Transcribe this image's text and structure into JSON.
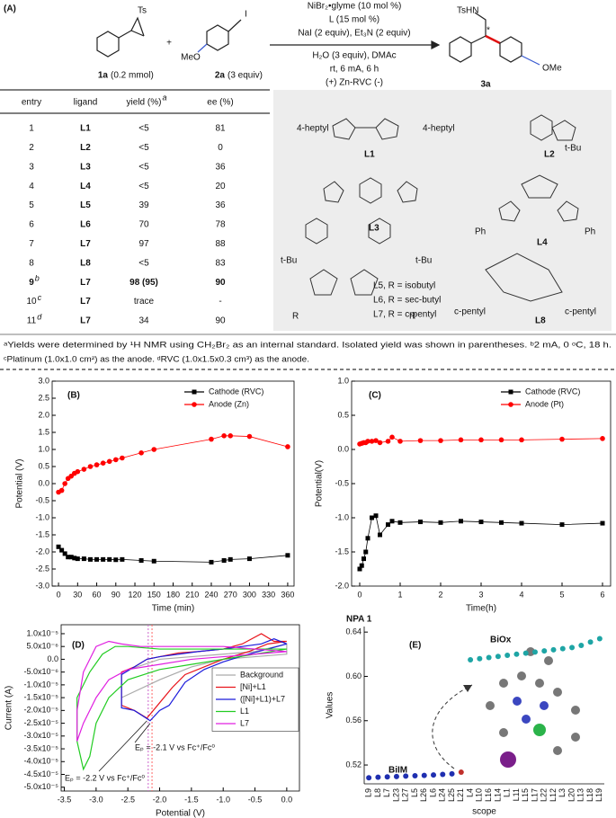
{
  "panel_a": {
    "label": "(A)",
    "scheme": {
      "ts": "Ts",
      "r1_id": "1a",
      "r1_amount": "(0.2 mmol)",
      "plus": "+",
      "meo": "MeO",
      "iodo": "I",
      "r2_id": "2a",
      "r2_amount": "(3 equiv)",
      "conditions_above": [
        "NiBr₂•glyme (10 mol %)",
        "L (15 mol %)",
        "NaI (2 equiv), Et₃N (2 equiv)"
      ],
      "conditions_below": [
        "H₂O (3 equiv), DMAc",
        "rt, 6 mA, 6 h",
        "(+) Zn-RVC (-)"
      ],
      "tshn": "TsHN",
      "star": "*",
      "ome": "OMe",
      "product_id": "3a"
    },
    "table": {
      "headers": [
        "entry",
        "ligand",
        "yield (%)",
        "ee (%)"
      ],
      "header_notes": {
        "2": "a"
      },
      "rows": [
        [
          "1",
          "L1",
          "<5",
          "81"
        ],
        [
          "2",
          "L2",
          "<5",
          "0"
        ],
        [
          "3",
          "L3",
          "<5",
          "36"
        ],
        [
          "4",
          "L4",
          "<5",
          "20"
        ],
        [
          "5",
          "L5",
          "39",
          "36"
        ],
        [
          "6",
          "L6",
          "70",
          "78"
        ],
        [
          "7",
          "L7",
          "97",
          "88"
        ],
        [
          "8",
          "L8",
          "<5",
          "83"
        ],
        [
          "9",
          "L7",
          "98 (95)",
          "90"
        ],
        [
          "10",
          "L7",
          "trace",
          "-"
        ],
        [
          "11",
          "L7",
          "34",
          "90"
        ]
      ],
      "row_notes": {
        "8": "b",
        "9": "c",
        "10": "d"
      },
      "bold_row": 8,
      "bold_columns": [
        1
      ]
    },
    "ligands": [
      "4-heptyl",
      "4-heptyl",
      "L1",
      "L2",
      "t-Bu",
      "L3",
      "L4",
      "Ph",
      "Ph",
      "t-Bu",
      "t-Bu",
      "L5,   R = isobutyl",
      "L6,   R = sec-butyl",
      "L7,   R = c-pentyl",
      "R",
      "R",
      "L8",
      "c-pentyl",
      "c-pentyl"
    ],
    "footnotes": [
      "ᵃYields were determined by ¹H NMR using CH₂Br₂ as an internal standard. Isolated yield was shown in parentheses. ᵇ2 mA, 0 ᵒC, 18 h.",
      "ᶜPlatinum (1.0x1.0 cm²) as the anode. ᵈRVC (1.0x1.5x0.3 cm³) as the anode."
    ]
  },
  "chart_data": [
    {
      "type": "line",
      "panel": "(B)",
      "xlabel": "Time (min)",
      "ylabel": "Potential (V)",
      "legend": "top-right",
      "frame": true,
      "x": [
        0,
        5,
        10,
        15,
        20,
        25,
        30,
        40,
        50,
        60,
        70,
        80,
        90,
        100,
        130,
        150,
        240,
        260,
        270,
        300,
        360
      ],
      "series": [
        {
          "name": "Cathode (RVC)",
          "color": "#000000",
          "marker": "square",
          "values": [
            -1.85,
            -1.95,
            -2.05,
            -2.15,
            -2.15,
            -2.18,
            -2.2,
            -2.2,
            -2.22,
            -2.22,
            -2.22,
            -2.22,
            -2.23,
            -2.22,
            -2.25,
            -2.27,
            -2.3,
            -2.25,
            -2.22,
            -2.2,
            -2.1
          ]
        },
        {
          "name": "Anode (Zn)",
          "color": "#ff0000",
          "marker": "circle",
          "values": [
            -0.25,
            -0.2,
            0,
            0.15,
            0.22,
            0.3,
            0.35,
            0.42,
            0.5,
            0.55,
            0.6,
            0.65,
            0.7,
            0.75,
            0.9,
            1.0,
            1.3,
            1.4,
            1.4,
            1.38,
            1.08
          ]
        }
      ],
      "xlim": [
        -10,
        370
      ],
      "xticks": [
        0,
        30,
        60,
        90,
        120,
        150,
        180,
        210,
        240,
        270,
        300,
        330,
        360
      ],
      "ylim": [
        -3,
        3
      ],
      "yticks": [
        {
          "value": -3,
          "label": "-3.0"
        },
        -2.5,
        {
          "value": -2,
          "label": "-2.0"
        },
        -1.5,
        {
          "value": -1,
          "label": "-1.0"
        },
        -0.5,
        {
          "value": 0,
          "label": "0.0"
        },
        0.5,
        {
          "value": 1,
          "label": "1.0"
        },
        1.5,
        {
          "value": 2,
          "label": "2.0"
        },
        2.5,
        {
          "value": 3,
          "label": "3.0"
        }
      ]
    },
    {
      "type": "line",
      "panel": "(C)",
      "xlabel": "Time(h)",
      "ylabel": "Potential(V)",
      "legend": "top-right",
      "frame": true,
      "x": [
        0,
        0.05,
        0.1,
        0.15,
        0.2,
        0.3,
        0.4,
        0.5,
        0.7,
        0.8,
        1,
        1.5,
        2,
        2.5,
        3,
        3.5,
        4,
        5,
        6
      ],
      "series": [
        {
          "name": "Cathode (RVC)",
          "color": "#000000",
          "marker": "square",
          "values": [
            -1.75,
            -1.7,
            -1.6,
            -1.5,
            -1.3,
            -1.0,
            -0.97,
            -1.25,
            -1.1,
            -1.05,
            -1.07,
            -1.06,
            -1.07,
            -1.05,
            -1.06,
            -1.07,
            -1.08,
            -1.1,
            -1.08
          ]
        },
        {
          "name": "Anode (Pt)",
          "color": "#ff0000",
          "marker": "circle",
          "values": [
            0.08,
            0.09,
            0.1,
            0.1,
            0.12,
            0.12,
            0.13,
            0.1,
            0.12,
            0.18,
            0.12,
            0.13,
            0.13,
            0.14,
            0.14,
            0.14,
            0.14,
            0.15,
            0.16
          ]
        }
      ],
      "xlim": [
        -0.2,
        6.2
      ],
      "xticks": [
        0,
        1,
        2,
        3,
        4,
        5,
        6
      ],
      "ylim": [
        -2,
        1
      ],
      "yticks": [
        {
          "value": -2,
          "label": "-2.0"
        },
        -1.5,
        {
          "value": -1,
          "label": "-1.0"
        },
        -0.5,
        {
          "value": 0,
          "label": "0.0"
        },
        0.5,
        {
          "value": 1,
          "label": "1.0"
        }
      ]
    },
    {
      "type": "line",
      "panel": "(D)",
      "xlabel": "Potential (V)",
      "ylabel": "Current (A)",
      "legend": "right",
      "frame": true,
      "series": [
        {
          "name": "Background",
          "color": "#aaaaaa",
          "x": [
            -2.6,
            -2,
            -1.5,
            -1,
            -0.5,
            0,
            0,
            -0.5,
            -1,
            -1.5,
            -2,
            -2.6
          ],
          "values": [
            -1.5e-05,
            -8e-06,
            -3e-06,
            0,
            1e-06,
            2e-06,
            6e-06,
            3e-06,
            2e-06,
            1e-06,
            0,
            -5e-06
          ]
        },
        {
          "name": "[Ni]+L1",
          "color": "#e8141b",
          "x": [
            0,
            -0.3,
            -0.6,
            -1,
            -1.3,
            -1.6,
            -1.8,
            -2.0,
            -2.2,
            -2.4,
            -2.6,
            -2.6,
            -2.4,
            -2.2,
            -2,
            -1.7,
            -1.4,
            -1,
            -0.7,
            -0.4,
            -0.2,
            0
          ],
          "values": [
            7e-06,
            6e-06,
            3e-06,
            0,
            -3e-06,
            -6e-06,
            -1.1e-05,
            -1.7e-05,
            -2.3e-05,
            -2e-05,
            -1.8e-05,
            -5e-06,
            -3e-06,
            0,
            1e-06,
            2.5e-06,
            3e-06,
            4e-06,
            6e-06,
            1e-05,
            7e-06,
            7e-06
          ]
        },
        {
          "name": "([Ni]+L1)+L7",
          "color": "#1a1adb",
          "x": [
            0,
            -0.3,
            -0.6,
            -1,
            -1.3,
            -1.6,
            -1.85,
            -2.0,
            -2.15,
            -2.4,
            -2.6,
            -2.6,
            -2.4,
            -2.2,
            -2,
            -1.7,
            -1.4,
            -1,
            -0.7,
            -0.4,
            -0.2,
            0
          ],
          "values": [
            6e-06,
            4e-06,
            2e-06,
            -1e-06,
            -4e-06,
            -9e-06,
            -1.8e-05,
            -2e-05,
            -2.4e-05,
            -2e-05,
            -1.9e-05,
            -6e-06,
            -3e-06,
            0,
            1e-06,
            2e-06,
            3e-06,
            4e-06,
            5e-06,
            6e-06,
            8e-06,
            6e-06
          ]
        },
        {
          "name": "L1",
          "color": "#22cc22",
          "x": [
            0,
            -0.5,
            -1,
            -1.5,
            -2,
            -2.5,
            -2.8,
            -3.0,
            -3.1,
            -3.2,
            -3.3,
            -3.3,
            -3.1,
            -2.9,
            -2.7,
            -2.5,
            -2,
            -1.5,
            -1,
            -0.5,
            0
          ],
          "values": [
            4e-06,
            2e-06,
            0,
            -2e-06,
            -4e-06,
            -8e-06,
            -1.5e-05,
            -2.5e-05,
            -3.8e-05,
            -4.3e-05,
            -3.2e-05,
            -1.5e-05,
            -5e-06,
            2e-06,
            5e-06,
            5e-06,
            4e-06,
            4e-06,
            4e-06,
            4e-06,
            4e-06
          ]
        },
        {
          "name": "L7",
          "color": "#e020e0",
          "x": [
            0,
            -0.5,
            -1,
            -1.5,
            -2,
            -2.5,
            -2.8,
            -3.0,
            -3.2,
            -3.3,
            -3.3,
            -3.2,
            -3.0,
            -2.8,
            -2.6,
            -2.3,
            -2,
            -1.5,
            -1,
            -0.5,
            0
          ],
          "values": [
            3e-06,
            2e-06,
            1e-06,
            0,
            -2e-06,
            -4e-06,
            -8e-06,
            -1.5e-05,
            -2.5e-05,
            -3.2e-05,
            -2e-05,
            -5e-06,
            5e-06,
            7e-06,
            6e-06,
            5e-06,
            5e-06,
            5e-06,
            5e-06,
            4e-06,
            3e-06
          ]
        }
      ],
      "vlines": [
        {
          "x": -2.18,
          "color": "#cc66cc"
        },
        {
          "x": -2.12,
          "color": "#ff6666"
        }
      ],
      "annotations": [
        "Eₚ = -2.1 V vs Fc⁺/Fc⁰",
        "Eₚ = -2.2 V vs Fc⁺/Fc⁰"
      ],
      "xlim": [
        -3.55,
        0.2
      ],
      "xticks": [
        -3.5,
        {
          "value": -3,
          "label": "-3.0"
        },
        -2.5,
        {
          "value": -2,
          "label": "-2.0"
        },
        -1.5,
        {
          "value": -1,
          "label": "-1.0"
        },
        -0.5,
        {
          "value": 0,
          "label": "0.0"
        }
      ],
      "ylim": [
        -5.15e-05,
        1.35e-05
      ],
      "yticks": [
        {
          "value": -5e-05,
          "label": "-5.0x10⁻⁵"
        },
        {
          "value": -4.5e-05,
          "label": "-4.5x10⁻⁵"
        },
        {
          "value": -4e-05,
          "label": "-4.0x10⁻⁵"
        },
        {
          "value": -3.5e-05,
          "label": "-3.5x10⁻⁵"
        },
        {
          "value": -3e-05,
          "label": "-3.0x10⁻⁵"
        },
        {
          "value": -2.5e-05,
          "label": "-2.5x10⁻⁵"
        },
        {
          "value": -2e-05,
          "label": "-2.0x10⁻⁵"
        },
        {
          "value": -1.5e-05,
          "label": "-1.5x10⁻⁵"
        },
        {
          "value": -1e-05,
          "label": "-1.0x10⁻⁵"
        },
        {
          "value": -5e-06,
          "label": "-5.0x10⁻⁶"
        },
        {
          "value": 0,
          "label": "0.0"
        },
        {
          "value": 5e-06,
          "label": "5.0x10⁻⁶"
        },
        {
          "value": 1e-05,
          "label": "1.0x10⁻⁵"
        }
      ]
    },
    {
      "type": "scatter",
      "panel": "(E)",
      "title": "NPA 1",
      "xlabel": "scope",
      "ylabel": "Values",
      "frame": false,
      "categories": [
        "L9",
        "L8",
        "L7",
        "L23",
        "L27",
        "L5",
        "L26",
        "L6",
        "L24",
        "L25",
        "L21",
        "L4",
        "L10",
        "L16",
        "L14",
        "L1",
        "L11",
        "L15",
        "L17",
        "L22",
        "L12",
        "L3",
        "L20",
        "L13",
        "L18",
        "L19"
      ],
      "values": [
        0.5085,
        0.509,
        0.5093,
        0.5096,
        0.51,
        0.5103,
        0.5106,
        0.511,
        0.5115,
        0.512,
        0.5135,
        0.615,
        0.616,
        0.617,
        0.618,
        0.619,
        0.62,
        0.621,
        0.622,
        0.623,
        0.624,
        0.625,
        0.626,
        0.628,
        0.631,
        0.634
      ],
      "colors": [
        "#1f2fb0",
        "#1f2fb0",
        "#1f2fb0",
        "#1f2fb0",
        "#1f2fb0",
        "#1f2fb0",
        "#1f2fb0",
        "#1f2fb0",
        "#1f2fb0",
        "#1f2fb0",
        "#c0302b",
        "#1ea5a5",
        "#1ea5a5",
        "#1ea5a5",
        "#1ea5a5",
        "#1ea5a5",
        "#1ea5a5",
        "#1ea5a5",
        "#1ea5a5",
        "#1ea5a5",
        "#1ea5a5",
        "#1ea5a5",
        "#1ea5a5",
        "#1ea5a5",
        "#1ea5a5",
        "#1ea5a5"
      ],
      "annotations": [
        "BiOx",
        "BiIM"
      ],
      "ylim": [
        0.503,
        0.645
      ],
      "yticks": [
        0.52,
        0.56,
        {
          "value": 0.6,
          "label": "0.60"
        },
        0.64
      ]
    }
  ]
}
